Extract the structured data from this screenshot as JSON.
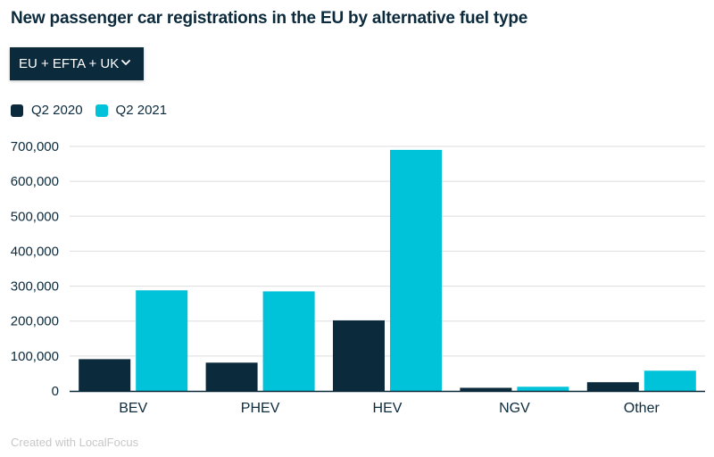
{
  "header": {
    "title": "New passenger car registrations in the EU by alternative fuel type"
  },
  "filter": {
    "selected": "EU + EFTA + UK",
    "icon": "chevron-down-icon"
  },
  "colors": {
    "q2_2020": "#0b2a3c",
    "q2_2021": "#00c2d9",
    "grid": "#dddddd",
    "axis": "#0b2a3c"
  },
  "chart_data": {
    "type": "bar",
    "title": "New passenger car registrations in the EU by alternative fuel type",
    "xlabel": "",
    "ylabel": "",
    "categories": [
      "BEV",
      "PHEV",
      "HEV",
      "NGV",
      "Other"
    ],
    "series": [
      {
        "name": "Q2 2020",
        "values": [
          91000,
          81000,
          202000,
          9000,
          25000
        ]
      },
      {
        "name": "Q2 2021",
        "values": [
          288000,
          285000,
          690000,
          12000,
          58000
        ]
      }
    ],
    "ylim": [
      0,
      700000
    ],
    "yticks": [
      0,
      100000,
      200000,
      300000,
      400000,
      500000,
      600000,
      700000
    ],
    "ytick_labels": [
      "0",
      "100,000",
      "200,000",
      "300,000",
      "400,000",
      "500,000",
      "600,000",
      "700,000"
    ],
    "grid": true,
    "legend_position": "top-left"
  },
  "footer": {
    "credit": "Created with LocalFocus"
  }
}
